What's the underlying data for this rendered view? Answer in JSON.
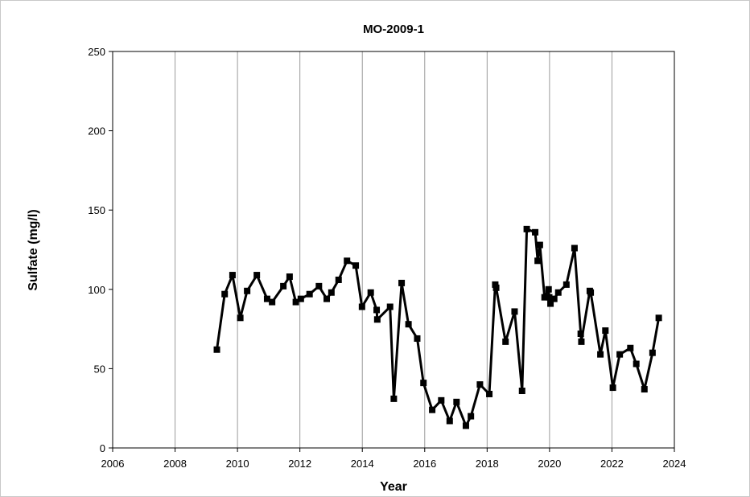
{
  "chart_data": {
    "type": "line",
    "title": "MO-2009-1",
    "xlabel": "Year",
    "ylabel": "Sulfate (mg/l)",
    "xlim": [
      2006,
      2024
    ],
    "ylim": [
      0,
      250
    ],
    "xticks": [
      2006,
      2008,
      2010,
      2012,
      2014,
      2016,
      2018,
      2020,
      2022,
      2024
    ],
    "yticks": [
      0,
      50,
      100,
      150,
      200,
      250
    ],
    "grid": "vertical",
    "legend": "none",
    "marker": "square",
    "color": "#000000",
    "series": [
      {
        "x": [
          2009.34,
          2009.59,
          2009.84,
          2010.09,
          2010.31,
          2010.62,
          2010.95,
          2011.11,
          2011.47,
          2011.67,
          2011.87,
          2012.03,
          2012.31,
          2012.61,
          2012.86,
          2013.01,
          2013.24,
          2013.51,
          2013.79,
          2013.99,
          2014.27,
          2014.46,
          2014.48,
          2014.89,
          2015.01,
          2015.26,
          2015.48,
          2015.76,
          2015.96,
          2016.24,
          2016.53,
          2016.8,
          2017.02,
          2017.32,
          2017.48,
          2017.77,
          2018.07,
          2018.26,
          2018.29,
          2018.59,
          2018.88,
          2019.12,
          2019.27,
          2019.54,
          2019.62,
          2019.69,
          2019.84,
          2019.97,
          2019.99,
          2020.03,
          2020.15,
          2020.28,
          2020.54,
          2020.8,
          2021.0,
          2021.02,
          2021.29,
          2021.32,
          2021.63,
          2021.79,
          2022.03,
          2022.25,
          2022.59,
          2022.78,
          2023.04,
          2023.3,
          2023.5
        ],
        "y": [
          62,
          97,
          109,
          82,
          99,
          109,
          94,
          92,
          102,
          108,
          92,
          94,
          97,
          102,
          94,
          98,
          106,
          118,
          115,
          89,
          98,
          87,
          81,
          89,
          31,
          104,
          78,
          69,
          41,
          24,
          30,
          17,
          29,
          14,
          20,
          40,
          34,
          103,
          101,
          67,
          86,
          36,
          138,
          136,
          118,
          128,
          95,
          100,
          95,
          91,
          94,
          98,
          103,
          126,
          72,
          67,
          99,
          98,
          59,
          74,
          38,
          59,
          63,
          53,
          37,
          60,
          82
        ]
      }
    ]
  }
}
